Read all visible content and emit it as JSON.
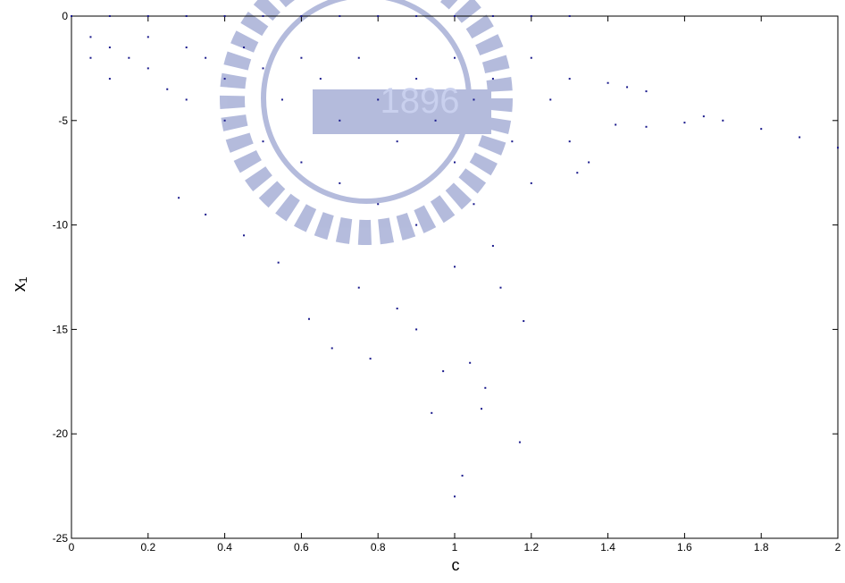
{
  "chart_data": {
    "type": "scatter",
    "xlabel": "c",
    "ylabel": "x₁",
    "watermark": "1896",
    "color": "#1a1a8c",
    "xlim": [
      0,
      2
    ],
    "ylim": [
      -25,
      0
    ],
    "xticks": [
      0,
      0.2,
      0.4,
      0.6,
      0.8,
      1,
      1.2,
      1.4,
      1.6,
      1.8,
      2
    ],
    "yticks": [
      -25,
      -20,
      -15,
      -10,
      -5,
      0
    ],
    "x": [
      0,
      0.1,
      0.2,
      0.3,
      0.4,
      0.5,
      0.6,
      0.7,
      0.8,
      0.9,
      1.0,
      1.1,
      1.2,
      1.3,
      0.05,
      0.05,
      0.1,
      0.1,
      0.15,
      0.2,
      0.2,
      0.25,
      0.3,
      0.3,
      0.35,
      0.4,
      0.4,
      0.45,
      0.5,
      0.5,
      0.55,
      0.6,
      0.6,
      0.65,
      0.7,
      0.7,
      0.75,
      0.8,
      0.8,
      0.85,
      0.9,
      0.9,
      0.95,
      1.0,
      1.0,
      1.0,
      1.05,
      1.05,
      1.1,
      1.1,
      1.15,
      1.2,
      1.2,
      1.25,
      1.3,
      1.3,
      1.32,
      1.35,
      0.28,
      0.35,
      0.45,
      0.54,
      0.62,
      0.68,
      0.75,
      0.78,
      0.85,
      0.9,
      0.94,
      0.97,
      1.0,
      1.02,
      1.04,
      1.07,
      1.08,
      1.12,
      1.17,
      1.18,
      1.4,
      1.45,
      1.5,
      1.42,
      1.5,
      1.6,
      1.65,
      1.7,
      1.8,
      1.9,
      2.0
    ],
    "y": [
      0,
      0,
      0,
      0,
      0,
      0,
      0,
      0,
      0,
      0,
      0,
      0,
      0,
      0,
      -1,
      -2,
      -1.5,
      -3,
      -2,
      -1,
      -2.5,
      -3.5,
      -1.5,
      -4,
      -2,
      -3,
      -5,
      -1.5,
      -2.5,
      -6,
      -4,
      -2,
      -7,
      -3,
      -5,
      -8,
      -2,
      -4,
      -9,
      -6,
      -3,
      -10,
      -5,
      -2,
      -7,
      -12,
      -4,
      -9,
      -3,
      -11,
      -6,
      -2,
      -8,
      -4,
      -3,
      -6,
      -7.5,
      -7,
      -8.7,
      -9.5,
      -10.5,
      -11.8,
      -14.5,
      -15.9,
      -13,
      -16.4,
      -14,
      -15,
      -19,
      -17,
      -23,
      -22,
      -16.6,
      -18.8,
      -17.8,
      -13,
      -20.4,
      -14.6,
      -3.2,
      -3.4,
      -3.6,
      -5.2,
      -5.3,
      -5.1,
      -4.8,
      -5.0,
      -5.4,
      -5.8,
      -6.3
    ]
  }
}
